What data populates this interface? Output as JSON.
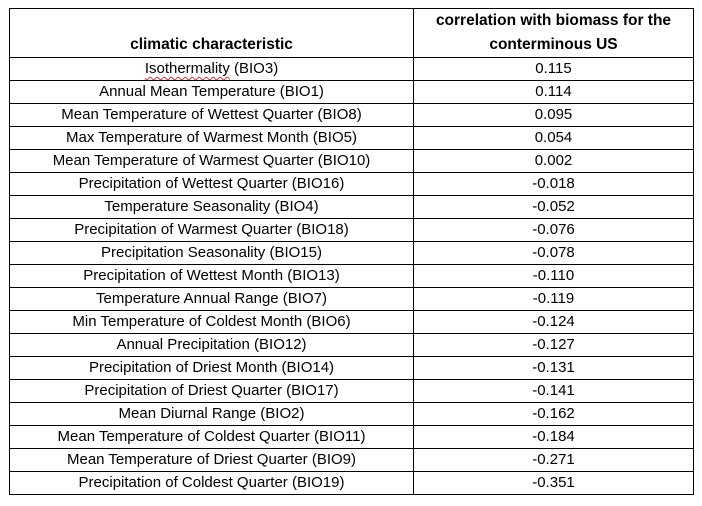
{
  "table": {
    "headers": {
      "characteristic": "climatic characteristic",
      "correlation": "correlation with biomass for the conterminous US"
    },
    "rows": [
      {
        "word": "Isothermality",
        "code": " (BIO3)",
        "value": "0.115"
      },
      {
        "label": "Annual Mean Temperature (BIO1)",
        "value": "0.114"
      },
      {
        "label": "Mean Temperature of Wettest Quarter (BIO8)",
        "value": "0.095"
      },
      {
        "label": "Max Temperature of Warmest Month (BIO5)",
        "value": "0.054"
      },
      {
        "label": "Mean Temperature of Warmest Quarter (BIO10)",
        "value": "0.002"
      },
      {
        "label": "Precipitation of Wettest Quarter (BIO16)",
        "value": "-0.018"
      },
      {
        "label": "Temperature Seasonality (BIO4)",
        "value": "-0.052"
      },
      {
        "label": "Precipitation of Warmest Quarter (BIO18)",
        "value": "-0.076"
      },
      {
        "label": "Precipitation Seasonality (BIO15)",
        "value": "-0.078"
      },
      {
        "label": "Precipitation of Wettest Month (BIO13)",
        "value": "-0.110"
      },
      {
        "label": "Temperature Annual Range (BIO7)",
        "value": "-0.119"
      },
      {
        "label": "Min Temperature of Coldest Month (BIO6)",
        "value": "-0.124"
      },
      {
        "label": "Annual Precipitation (BIO12)",
        "value": "-0.127"
      },
      {
        "label": "Precipitation of Driest Month (BIO14)",
        "value": "-0.131"
      },
      {
        "label": "Precipitation of Driest Quarter (BIO17)",
        "value": "-0.141"
      },
      {
        "label": "Mean Diurnal Range (BIO2)",
        "value": "-0.162"
      },
      {
        "label": "Mean Temperature of Coldest Quarter (BIO11)",
        "value": "-0.184"
      },
      {
        "label": "Mean Temperature of Driest Quarter (BIO9)",
        "value": "-0.271"
      },
      {
        "label": "Precipitation of Coldest Quarter (BIO19)",
        "value": "-0.351"
      }
    ]
  }
}
